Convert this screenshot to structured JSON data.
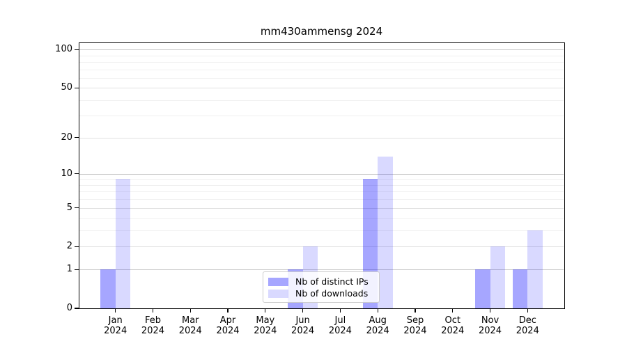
{
  "page": {
    "background": "#ffffff"
  },
  "chart_data": {
    "type": "bar",
    "title": "mm430ammensg 2024",
    "categories": [
      "Jan",
      "Feb",
      "Mar",
      "Apr",
      "May",
      "Jun",
      "Jul",
      "Aug",
      "Sep",
      "Oct",
      "Nov",
      "Dec"
    ],
    "x_year": "2024",
    "series": [
      {
        "name": "Nb of distinct IPs",
        "color": "rgba(0,0,255,0.35)",
        "values": [
          1,
          0,
          0,
          0,
          0,
          1,
          0,
          9,
          0,
          0,
          1,
          1
        ]
      },
      {
        "name": "Nb of downloads",
        "color": "rgba(0,0,255,0.15)",
        "values": [
          9,
          0,
          0,
          0,
          0,
          2,
          0,
          14,
          0,
          0,
          2,
          3
        ]
      }
    ],
    "xlabel": "",
    "ylabel": "",
    "yscale": "log1p",
    "ylim": [
      0,
      113.5
    ],
    "yticks": [
      0,
      1,
      2,
      5,
      10,
      20,
      50,
      100
    ],
    "grid": {
      "major": [
        1,
        10,
        100
      ],
      "mid": [
        2,
        5,
        20,
        50
      ],
      "minor": [
        3,
        4,
        6,
        7,
        8,
        9,
        30,
        40,
        60,
        70,
        80,
        90
      ]
    },
    "legend": {
      "position": "lower center",
      "labels": [
        "Nb of distinct IPs",
        "Nb of downloads"
      ]
    },
    "axis_color": "#000000"
  }
}
